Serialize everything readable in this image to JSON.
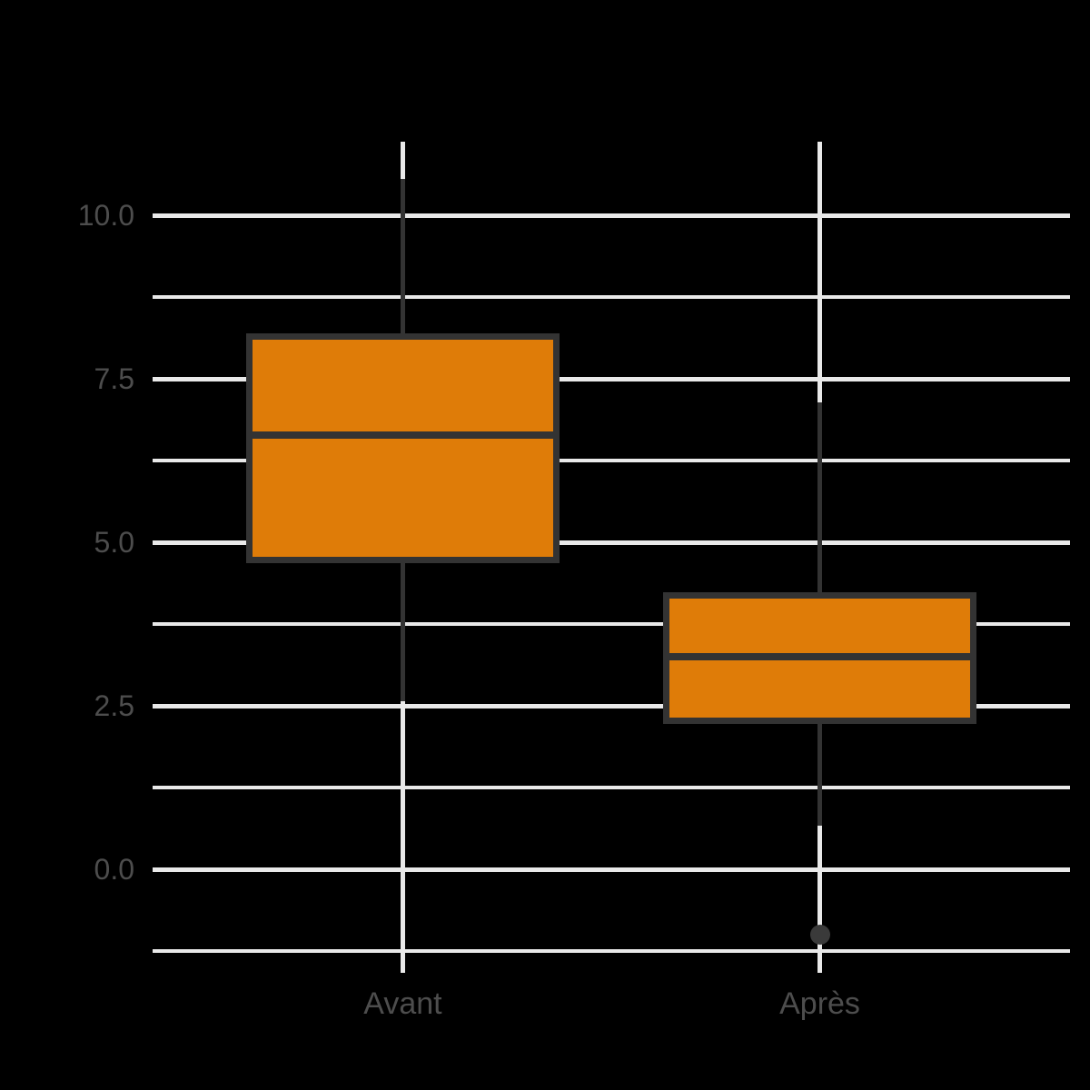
{
  "figure": {
    "background": "#000000",
    "title": ""
  },
  "chart_data": {
    "type": "boxplot",
    "orientation": "vertical",
    "title": "",
    "xlabel": "",
    "ylabel": "",
    "legend": false,
    "grid": true,
    "categories": [
      "Avant",
      "Après"
    ],
    "x_positions": [
      1,
      2
    ],
    "xlim": [
      0.4,
      2.6
    ],
    "box_width": 0.75,
    "ylim": [
      -1.58,
      11.13
    ],
    "yticks": [
      {
        "value": 10.0,
        "label": "10.0"
      },
      {
        "value": 7.5,
        "label": "7.5"
      },
      {
        "value": 5.0,
        "label": "5.0"
      },
      {
        "value": 2.5,
        "label": "2.5"
      },
      {
        "value": 0.0,
        "label": "0.0"
      }
    ],
    "minor_gridlines": [
      8.75,
      6.25,
      3.75,
      1.25,
      -1.25
    ],
    "series": [
      {
        "name": "Avant",
        "whisker_low": 2.58,
        "q1": 4.68,
        "median": 6.65,
        "q3": 8.2,
        "whisker_high": 10.56,
        "outliers": []
      },
      {
        "name": "Après",
        "whisker_low": 0.67,
        "q1": 2.22,
        "median": 3.26,
        "q3": 4.24,
        "whisker_high": 7.14,
        "outliers": [
          -1.0
        ]
      }
    ]
  },
  "style": {
    "box_fill": "#DF7C08",
    "box_border": "#333333",
    "whisker_color": "#333333",
    "median_color": "#333333",
    "outlier_color": "#3A3A3A",
    "grid_color": "#E9E9E9",
    "text_color": "#4D4D4D",
    "background": "#000000"
  }
}
